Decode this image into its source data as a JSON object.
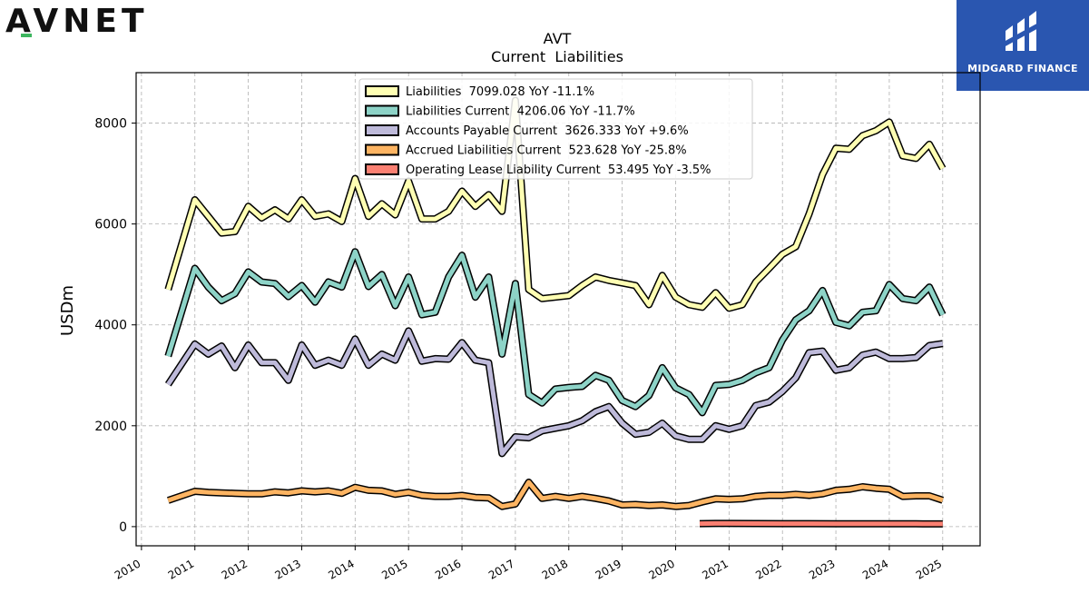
{
  "brand": {
    "logo_text": "AVNET"
  },
  "publisher": {
    "name": "MIDGARD FINANCE"
  },
  "colors": {
    "liabilities": "#ffffb3",
    "liabilities_current": "#8dd3c7",
    "accounts_payable": "#bebada",
    "accrued": "#fdb462",
    "operating_lease": "#fb8072",
    "publisher_bg": "#2a56b0",
    "logo_accent": "#3cb55e"
  },
  "chart_data": {
    "type": "line",
    "title": "AVT",
    "subtitle": "Current  Liabilities",
    "ylabel": "USDm",
    "xlabel": "",
    "xlim": [
      2009.9,
      2025.7
    ],
    "ylim": [
      -380,
      9000
    ],
    "yticks": [
      0,
      2000,
      4000,
      6000,
      8000
    ],
    "xticks": [
      2010,
      2011,
      2012,
      2013,
      2014,
      2015,
      2016,
      2017,
      2018,
      2019,
      2020,
      2021,
      2022,
      2023,
      2024,
      2025
    ],
    "grid": true,
    "legend_position": "top-center",
    "series": [
      {
        "name": "Liabilities",
        "legend": "Liabilities  7099.028 YoY -11.1%",
        "color_key": "liabilities",
        "points": [
          [
            2010.5,
            4700
          ],
          [
            2011.0,
            6480
          ],
          [
            2011.25,
            6150
          ],
          [
            2011.5,
            5820
          ],
          [
            2011.75,
            5850
          ],
          [
            2012.0,
            6350
          ],
          [
            2012.25,
            6120
          ],
          [
            2012.5,
            6280
          ],
          [
            2012.75,
            6100
          ],
          [
            2013.0,
            6480
          ],
          [
            2013.25,
            6150
          ],
          [
            2013.5,
            6200
          ],
          [
            2013.75,
            6050
          ],
          [
            2014.0,
            6900
          ],
          [
            2014.25,
            6150
          ],
          [
            2014.5,
            6400
          ],
          [
            2014.75,
            6180
          ],
          [
            2015.0,
            6850
          ],
          [
            2015.25,
            6100
          ],
          [
            2015.5,
            6100
          ],
          [
            2015.75,
            6250
          ],
          [
            2016.0,
            6650
          ],
          [
            2016.25,
            6350
          ],
          [
            2016.5,
            6580
          ],
          [
            2016.75,
            6250
          ],
          [
            2017.0,
            8450
          ],
          [
            2017.25,
            4700
          ],
          [
            2017.5,
            4520
          ],
          [
            2017.75,
            4550
          ],
          [
            2018.0,
            4580
          ],
          [
            2018.25,
            4780
          ],
          [
            2018.5,
            4950
          ],
          [
            2018.75,
            4880
          ],
          [
            2019.0,
            4830
          ],
          [
            2019.25,
            4780
          ],
          [
            2019.5,
            4400
          ],
          [
            2019.75,
            4980
          ],
          [
            2020.0,
            4550
          ],
          [
            2020.25,
            4400
          ],
          [
            2020.5,
            4350
          ],
          [
            2020.75,
            4640
          ],
          [
            2021.0,
            4330
          ],
          [
            2021.25,
            4400
          ],
          [
            2021.5,
            4850
          ],
          [
            2021.75,
            5120
          ],
          [
            2022.0,
            5400
          ],
          [
            2022.25,
            5550
          ],
          [
            2022.5,
            6200
          ],
          [
            2022.75,
            6980
          ],
          [
            2023.0,
            7500
          ],
          [
            2023.25,
            7480
          ],
          [
            2023.5,
            7750
          ],
          [
            2023.75,
            7850
          ],
          [
            2024.0,
            8020
          ],
          [
            2024.25,
            7350
          ],
          [
            2024.5,
            7300
          ],
          [
            2024.75,
            7580
          ],
          [
            2025.0,
            7100
          ]
        ]
      },
      {
        "name": "Liabilities Current",
        "legend": "Liabilities Current  4206.06 YoY -11.7%",
        "color_key": "liabilities_current",
        "points": [
          [
            2010.5,
            3380
          ],
          [
            2011.0,
            5120
          ],
          [
            2011.25,
            4750
          ],
          [
            2011.5,
            4480
          ],
          [
            2011.75,
            4620
          ],
          [
            2012.0,
            5050
          ],
          [
            2012.25,
            4850
          ],
          [
            2012.5,
            4820
          ],
          [
            2012.75,
            4560
          ],
          [
            2013.0,
            4780
          ],
          [
            2013.25,
            4450
          ],
          [
            2013.5,
            4850
          ],
          [
            2013.75,
            4750
          ],
          [
            2014.0,
            5450
          ],
          [
            2014.25,
            4760
          ],
          [
            2014.5,
            5000
          ],
          [
            2014.75,
            4380
          ],
          [
            2015.0,
            4950
          ],
          [
            2015.25,
            4200
          ],
          [
            2015.5,
            4250
          ],
          [
            2015.75,
            4950
          ],
          [
            2016.0,
            5380
          ],
          [
            2016.25,
            4550
          ],
          [
            2016.5,
            4950
          ],
          [
            2016.75,
            3420
          ],
          [
            2017.0,
            4820
          ],
          [
            2017.25,
            2620
          ],
          [
            2017.5,
            2450
          ],
          [
            2017.75,
            2730
          ],
          [
            2018.0,
            2760
          ],
          [
            2018.25,
            2780
          ],
          [
            2018.5,
            3000
          ],
          [
            2018.75,
            2900
          ],
          [
            2019.0,
            2500
          ],
          [
            2019.25,
            2380
          ],
          [
            2019.5,
            2600
          ],
          [
            2019.75,
            3150
          ],
          [
            2020.0,
            2750
          ],
          [
            2020.25,
            2620
          ],
          [
            2020.5,
            2260
          ],
          [
            2020.75,
            2800
          ],
          [
            2021.0,
            2820
          ],
          [
            2021.25,
            2900
          ],
          [
            2021.5,
            3050
          ],
          [
            2021.75,
            3150
          ],
          [
            2022.0,
            3700
          ],
          [
            2022.25,
            4100
          ],
          [
            2022.5,
            4280
          ],
          [
            2022.75,
            4680
          ],
          [
            2023.0,
            4050
          ],
          [
            2023.25,
            3980
          ],
          [
            2023.5,
            4250
          ],
          [
            2023.75,
            4280
          ],
          [
            2024.0,
            4800
          ],
          [
            2024.25,
            4520
          ],
          [
            2024.5,
            4480
          ],
          [
            2024.75,
            4750
          ],
          [
            2025.0,
            4200
          ]
        ]
      },
      {
        "name": "Accounts Payable Current",
        "legend": "Accounts Payable Current  3626.333 YoY +9.6%",
        "color_key": "accounts_payable",
        "points": [
          [
            2010.5,
            2820
          ],
          [
            2011.0,
            3620
          ],
          [
            2011.25,
            3420
          ],
          [
            2011.5,
            3580
          ],
          [
            2011.75,
            3150
          ],
          [
            2012.0,
            3600
          ],
          [
            2012.25,
            3250
          ],
          [
            2012.5,
            3250
          ],
          [
            2012.75,
            2900
          ],
          [
            2013.0,
            3600
          ],
          [
            2013.25,
            3200
          ],
          [
            2013.5,
            3300
          ],
          [
            2013.75,
            3200
          ],
          [
            2014.0,
            3720
          ],
          [
            2014.25,
            3200
          ],
          [
            2014.5,
            3420
          ],
          [
            2014.75,
            3300
          ],
          [
            2015.0,
            3880
          ],
          [
            2015.25,
            3280
          ],
          [
            2015.5,
            3330
          ],
          [
            2015.75,
            3320
          ],
          [
            2016.0,
            3650
          ],
          [
            2016.25,
            3300
          ],
          [
            2016.5,
            3250
          ],
          [
            2016.75,
            1450
          ],
          [
            2017.0,
            1780
          ],
          [
            2017.25,
            1760
          ],
          [
            2017.5,
            1900
          ],
          [
            2017.75,
            1950
          ],
          [
            2018.0,
            2000
          ],
          [
            2018.25,
            2100
          ],
          [
            2018.5,
            2280
          ],
          [
            2018.75,
            2380
          ],
          [
            2019.0,
            2050
          ],
          [
            2019.25,
            1830
          ],
          [
            2019.5,
            1870
          ],
          [
            2019.75,
            2050
          ],
          [
            2020.0,
            1800
          ],
          [
            2020.25,
            1730
          ],
          [
            2020.5,
            1730
          ],
          [
            2020.75,
            2000
          ],
          [
            2021.0,
            1930
          ],
          [
            2021.25,
            2000
          ],
          [
            2021.5,
            2400
          ],
          [
            2021.75,
            2470
          ],
          [
            2022.0,
            2680
          ],
          [
            2022.25,
            2950
          ],
          [
            2022.5,
            3450
          ],
          [
            2022.75,
            3480
          ],
          [
            2023.0,
            3100
          ],
          [
            2023.25,
            3150
          ],
          [
            2023.5,
            3400
          ],
          [
            2023.75,
            3460
          ],
          [
            2024.0,
            3330
          ],
          [
            2024.25,
            3330
          ],
          [
            2024.5,
            3350
          ],
          [
            2024.75,
            3590
          ],
          [
            2025.0,
            3630
          ]
        ]
      },
      {
        "name": "Accrued Liabilities Current",
        "legend": "Accrued Liabilities Current  523.628 YoY -25.8%",
        "color_key": "accrued",
        "points": [
          [
            2010.5,
            520
          ],
          [
            2011.0,
            700
          ],
          [
            2011.25,
            680
          ],
          [
            2011.5,
            670
          ],
          [
            2011.75,
            660
          ],
          [
            2012.0,
            650
          ],
          [
            2012.25,
            650
          ],
          [
            2012.5,
            690
          ],
          [
            2012.75,
            670
          ],
          [
            2013.0,
            710
          ],
          [
            2013.25,
            690
          ],
          [
            2013.5,
            710
          ],
          [
            2013.75,
            660
          ],
          [
            2014.0,
            780
          ],
          [
            2014.25,
            720
          ],
          [
            2014.5,
            710
          ],
          [
            2014.75,
            640
          ],
          [
            2015.0,
            680
          ],
          [
            2015.25,
            620
          ],
          [
            2015.5,
            600
          ],
          [
            2015.75,
            600
          ],
          [
            2016.0,
            620
          ],
          [
            2016.25,
            580
          ],
          [
            2016.5,
            570
          ],
          [
            2016.75,
            400
          ],
          [
            2017.0,
            450
          ],
          [
            2017.25,
            880
          ],
          [
            2017.5,
            560
          ],
          [
            2017.75,
            600
          ],
          [
            2018.0,
            560
          ],
          [
            2018.25,
            600
          ],
          [
            2018.5,
            560
          ],
          [
            2018.75,
            510
          ],
          [
            2019.0,
            430
          ],
          [
            2019.25,
            440
          ],
          [
            2019.5,
            420
          ],
          [
            2019.75,
            430
          ],
          [
            2020.0,
            400
          ],
          [
            2020.25,
            420
          ],
          [
            2020.5,
            490
          ],
          [
            2020.75,
            550
          ],
          [
            2021.0,
            540
          ],
          [
            2021.25,
            550
          ],
          [
            2021.5,
            600
          ],
          [
            2021.75,
            620
          ],
          [
            2022.0,
            620
          ],
          [
            2022.25,
            640
          ],
          [
            2022.5,
            620
          ],
          [
            2022.75,
            650
          ],
          [
            2023.0,
            720
          ],
          [
            2023.25,
            740
          ],
          [
            2023.5,
            790
          ],
          [
            2023.75,
            760
          ],
          [
            2024.0,
            740
          ],
          [
            2024.25,
            600
          ],
          [
            2024.5,
            610
          ],
          [
            2024.75,
            610
          ],
          [
            2025.0,
            524
          ]
        ]
      },
      {
        "name": "Operating Lease Liability Current",
        "legend": "Operating Lease Liability Current  53.495 YoY -3.5%",
        "color_key": "operating_lease",
        "points": [
          [
            2020.45,
            60
          ],
          [
            2020.75,
            62
          ],
          [
            2021.0,
            62
          ],
          [
            2021.5,
            61
          ],
          [
            2022.0,
            60
          ],
          [
            2022.5,
            59
          ],
          [
            2023.0,
            56
          ],
          [
            2023.5,
            55
          ],
          [
            2024.0,
            56
          ],
          [
            2024.5,
            55
          ],
          [
            2025.0,
            53.5
          ]
        ]
      }
    ]
  }
}
